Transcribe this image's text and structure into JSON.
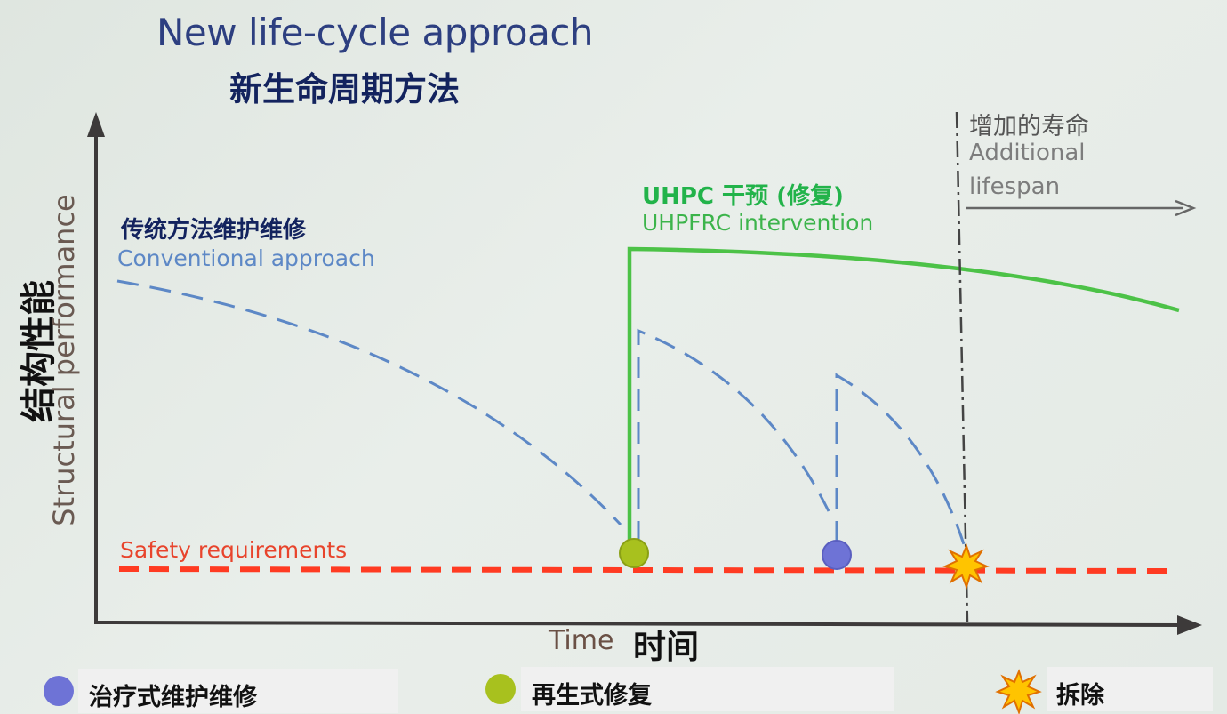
{
  "title": {
    "en": "New life-cycle approach",
    "zh": "新生命周期方法"
  },
  "y_axis": {
    "zh": "结构性能",
    "en": "Structural performance"
  },
  "x_axis": {
    "en": "Time",
    "zh": "时间"
  },
  "curves": {
    "conventional": {
      "zh": "传统方法维护维修",
      "en": "Conventional approach",
      "color": "#5d88c6"
    },
    "uhpc": {
      "zh": "UHPC 干预 (修复)",
      "en": "UHPFRC intervention",
      "color": "#3cb44b"
    },
    "safety": {
      "en": "Safety requirements",
      "color": "#e8442c"
    }
  },
  "additional_lifespan": {
    "zh": "增加的寿命",
    "en_line1": "Additional",
    "en_line2": "lifespan"
  },
  "legend": {
    "curative": {
      "label": "治疗式维护维修",
      "color": "#6e73d6"
    },
    "regenerative": {
      "label": "再生式修复",
      "color": "#a8c11e"
    },
    "demolition": {
      "label": "拆除",
      "color": "#f5a800"
    }
  }
}
